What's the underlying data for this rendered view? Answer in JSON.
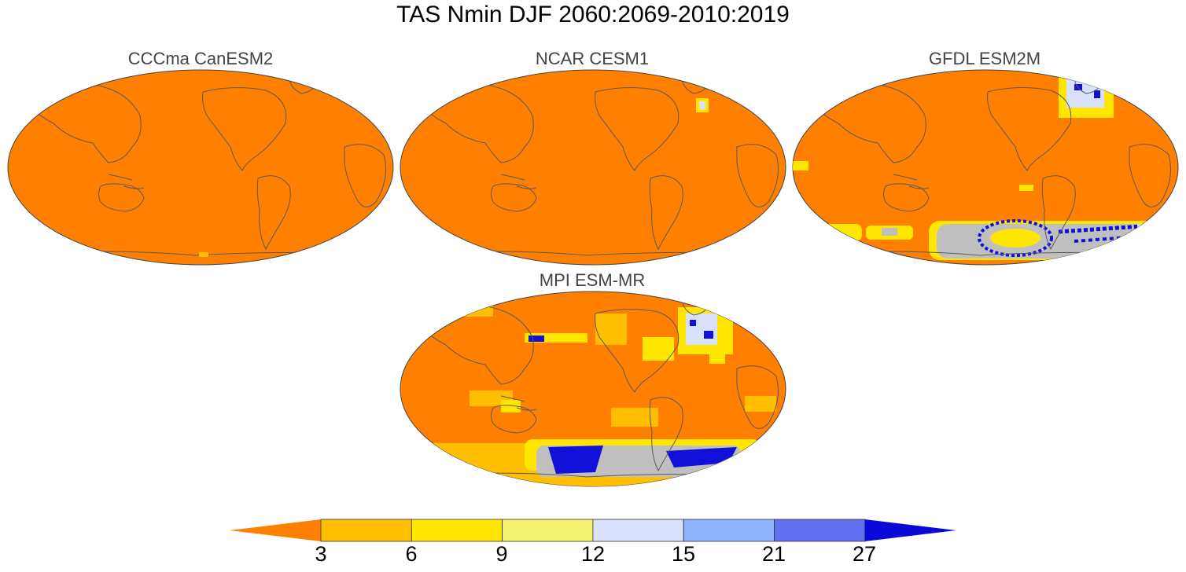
{
  "title": "TAS Nmin DJF 2060:2069-2010:2019",
  "maps": [
    {
      "title": "CCCma CanESM2"
    },
    {
      "title": "NCAR CESM1"
    },
    {
      "title": "GFDL ESM2M"
    },
    {
      "title": "MPI ESM-MR"
    }
  ],
  "colorbar": {
    "labels": [
      "3",
      "6",
      "9",
      "12",
      "15",
      "21",
      "27"
    ],
    "colors": [
      "#ff7f00",
      "#ffbf00",
      "#ffe600",
      "#f2f26e",
      "#d8e0fb",
      "#8fb2ff",
      "#6070f0",
      "#0a0ad8"
    ]
  },
  "colors": {
    "base": "#ff7f00",
    "light_yellow": "#ffbf00",
    "yellow": "#ffe600",
    "grey": "#bfbfbf",
    "pale_blue": "#d8e0fb",
    "blue": "#1010d8",
    "coast": "#5a5a5a"
  }
}
